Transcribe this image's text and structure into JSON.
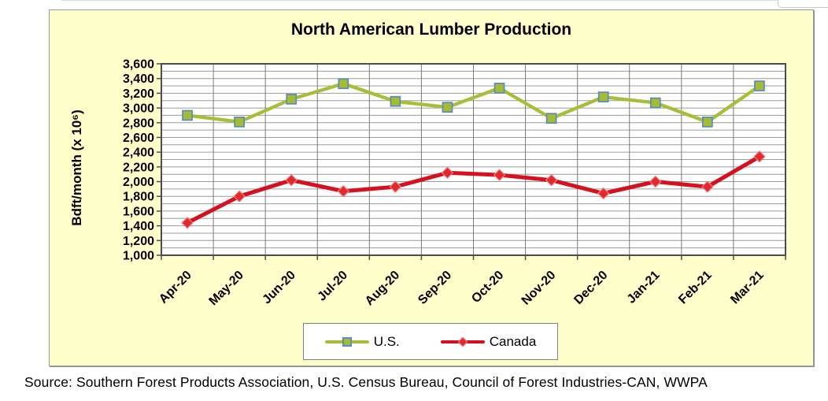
{
  "page": {
    "source_line": "Source: Southern Forest Products Association, U.S. Census Bureau, Council of Forest Industries-CAN, WWPA"
  },
  "chart_data": {
    "type": "line",
    "title": "North American Lumber Production",
    "ylabel": "Bdft/month (x 10⁶)",
    "xlabel": "",
    "ylim": [
      1000,
      3600
    ],
    "y_tick_step": 200,
    "y_grid_step": 100,
    "grid": true,
    "legend_position": "bottom-center",
    "background_color": "#FFFFCC",
    "plot_background_color": "#FFFFFF",
    "y_tick_labels": [
      "3,600",
      "3,400",
      "3,200",
      "3,000",
      "2,800",
      "2,600",
      "2,400",
      "2,200",
      "2,000",
      "1,800",
      "1,600",
      "1,400",
      "1,200",
      "1,000"
    ],
    "categories": [
      "Apr-20",
      "May-20",
      "Jun-20",
      "Jul-20",
      "Aug-20",
      "Sep-20",
      "Oct-20",
      "Nov-20",
      "Dec-20",
      "Jan-21",
      "Feb-21",
      "Mar-21"
    ],
    "series": [
      {
        "name": "U.S.",
        "marker": "square",
        "color": "#A6BF39",
        "marker_fill": "#A3BC32",
        "marker_stroke": "#5B8AC6",
        "line_width": 4.3,
        "values": [
          2900,
          2810,
          3120,
          3330,
          3090,
          3010,
          3270,
          2860,
          3150,
          3070,
          2810,
          3300
        ]
      },
      {
        "name": "Canada",
        "marker": "diamond",
        "color": "#D6101F",
        "marker_fill": "#E3282E",
        "marker_stroke": "#EC8080",
        "line_width": 5,
        "values": [
          1440,
          1800,
          2020,
          1870,
          1930,
          2120,
          2090,
          2020,
          1840,
          2000,
          1930,
          2340
        ]
      }
    ]
  }
}
